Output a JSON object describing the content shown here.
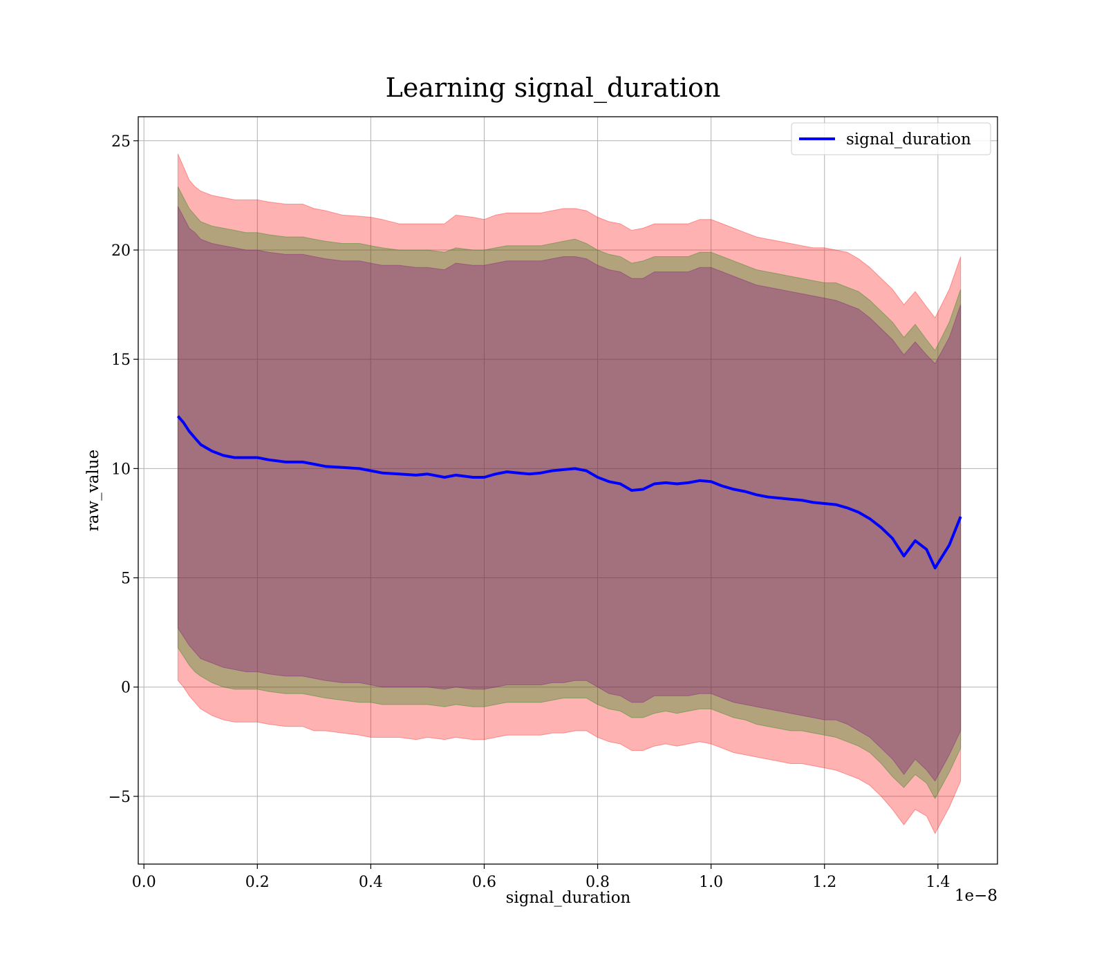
{
  "chart_data": {
    "type": "line",
    "title": "Learning signal_duration",
    "xlabel": "signal_duration",
    "ylabel": "raw_value",
    "x_offset_label": "1e−8",
    "xlim": [
      -0.01,
      1.505
    ],
    "ylim": [
      -8.1,
      26.1
    ],
    "x_ticks": [
      0.0,
      0.2,
      0.4,
      0.6,
      0.8,
      1.0,
      1.2,
      1.4
    ],
    "x_tick_labels": [
      "0.0",
      "0.2",
      "0.4",
      "0.6",
      "0.8",
      "1.0",
      "1.2",
      "1.4"
    ],
    "y_ticks": [
      -5,
      0,
      5,
      10,
      15,
      20,
      25
    ],
    "y_tick_labels": [
      "−5",
      "0",
      "5",
      "10",
      "15",
      "20",
      "25"
    ],
    "grid": true,
    "legend_position": "top-right",
    "series": [
      {
        "name": "signal_duration",
        "color": "#0000ff",
        "x": [
          0.06,
          0.07,
          0.08,
          0.09,
          0.1,
          0.12,
          0.14,
          0.16,
          0.18,
          0.2,
          0.22,
          0.25,
          0.28,
          0.3,
          0.32,
          0.35,
          0.38,
          0.4,
          0.42,
          0.45,
          0.48,
          0.5,
          0.53,
          0.55,
          0.58,
          0.6,
          0.62,
          0.64,
          0.66,
          0.68,
          0.7,
          0.72,
          0.74,
          0.76,
          0.78,
          0.8,
          0.82,
          0.84,
          0.86,
          0.88,
          0.9,
          0.92,
          0.94,
          0.96,
          0.98,
          1.0,
          1.02,
          1.04,
          1.06,
          1.08,
          1.1,
          1.12,
          1.14,
          1.16,
          1.18,
          1.2,
          1.22,
          1.24,
          1.26,
          1.28,
          1.3,
          1.32,
          1.34,
          1.36,
          1.38,
          1.395,
          1.42,
          1.44
        ],
        "y": [
          12.4,
          12.1,
          11.7,
          11.4,
          11.1,
          10.8,
          10.6,
          10.5,
          10.5,
          10.5,
          10.4,
          10.3,
          10.3,
          10.2,
          10.1,
          10.05,
          10.0,
          9.9,
          9.8,
          9.75,
          9.7,
          9.75,
          9.6,
          9.7,
          9.6,
          9.6,
          9.75,
          9.85,
          9.8,
          9.75,
          9.8,
          9.9,
          9.95,
          10.0,
          9.9,
          9.6,
          9.4,
          9.3,
          9.0,
          9.05,
          9.3,
          9.35,
          9.3,
          9.35,
          9.45,
          9.4,
          9.2,
          9.05,
          8.95,
          8.8,
          8.7,
          8.65,
          8.6,
          8.55,
          8.45,
          8.4,
          8.35,
          8.2,
          8.0,
          7.7,
          7.3,
          6.8,
          6.0,
          6.7,
          6.3,
          5.45,
          6.5,
          7.8
        ]
      }
    ],
    "bands": [
      {
        "color": "#ff0000",
        "opacity": 0.3,
        "upper": [
          24.4,
          23.8,
          23.2,
          22.9,
          22.7,
          22.5,
          22.4,
          22.3,
          22.3,
          22.3,
          22.2,
          22.1,
          22.1,
          21.9,
          21.8,
          21.6,
          21.55,
          21.5,
          21.4,
          21.2,
          21.2,
          21.2,
          21.2,
          21.6,
          21.5,
          21.4,
          21.6,
          21.7,
          21.7,
          21.7,
          21.7,
          21.8,
          21.9,
          21.9,
          21.8,
          21.5,
          21.3,
          21.2,
          20.9,
          21.0,
          21.2,
          21.2,
          21.2,
          21.2,
          21.4,
          21.4,
          21.2,
          21.0,
          20.8,
          20.6,
          20.5,
          20.4,
          20.3,
          20.2,
          20.1,
          20.1,
          20.0,
          19.9,
          19.6,
          19.2,
          18.7,
          18.2,
          17.5,
          18.1,
          17.4,
          16.9,
          18.2,
          19.7
        ],
        "lower": [
          0.3,
          0.0,
          -0.4,
          -0.7,
          -1.0,
          -1.3,
          -1.5,
          -1.6,
          -1.6,
          -1.6,
          -1.7,
          -1.8,
          -1.8,
          -2.0,
          -2.0,
          -2.1,
          -2.2,
          -2.3,
          -2.3,
          -2.3,
          -2.4,
          -2.3,
          -2.4,
          -2.3,
          -2.4,
          -2.4,
          -2.3,
          -2.2,
          -2.2,
          -2.2,
          -2.2,
          -2.1,
          -2.1,
          -2.0,
          -2.0,
          -2.3,
          -2.5,
          -2.6,
          -2.9,
          -2.9,
          -2.7,
          -2.6,
          -2.7,
          -2.6,
          -2.5,
          -2.6,
          -2.8,
          -3.0,
          -3.1,
          -3.2,
          -3.3,
          -3.4,
          -3.5,
          -3.5,
          -3.6,
          -3.7,
          -3.8,
          -4.0,
          -4.2,
          -4.5,
          -5.0,
          -5.6,
          -6.3,
          -5.6,
          -5.9,
          -6.7,
          -5.5,
          -4.3
        ]
      },
      {
        "color": "#008000",
        "opacity": 0.3,
        "upper": [
          22.9,
          22.4,
          21.9,
          21.6,
          21.3,
          21.1,
          21.0,
          20.9,
          20.8,
          20.8,
          20.7,
          20.6,
          20.6,
          20.5,
          20.4,
          20.3,
          20.3,
          20.2,
          20.1,
          20.0,
          20.0,
          20.0,
          19.9,
          20.1,
          20.0,
          20.0,
          20.1,
          20.2,
          20.2,
          20.2,
          20.2,
          20.3,
          20.4,
          20.5,
          20.3,
          20.0,
          19.8,
          19.7,
          19.4,
          19.5,
          19.7,
          19.7,
          19.7,
          19.7,
          19.9,
          19.9,
          19.7,
          19.5,
          19.3,
          19.1,
          19.0,
          18.9,
          18.8,
          18.7,
          18.6,
          18.5,
          18.5,
          18.3,
          18.1,
          17.7,
          17.2,
          16.7,
          16.0,
          16.6,
          15.9,
          15.4,
          16.7,
          18.2
        ],
        "lower": [
          1.8,
          1.4,
          1.0,
          0.7,
          0.5,
          0.2,
          0.0,
          -0.1,
          -0.1,
          -0.1,
          -0.2,
          -0.3,
          -0.3,
          -0.4,
          -0.5,
          -0.6,
          -0.7,
          -0.7,
          -0.8,
          -0.8,
          -0.8,
          -0.8,
          -0.9,
          -0.8,
          -0.9,
          -0.9,
          -0.8,
          -0.7,
          -0.7,
          -0.7,
          -0.7,
          -0.6,
          -0.5,
          -0.5,
          -0.5,
          -0.8,
          -1.0,
          -1.1,
          -1.4,
          -1.4,
          -1.2,
          -1.1,
          -1.2,
          -1.1,
          -1.0,
          -1.0,
          -1.2,
          -1.4,
          -1.5,
          -1.7,
          -1.8,
          -1.9,
          -2.0,
          -2.0,
          -2.1,
          -2.2,
          -2.3,
          -2.5,
          -2.7,
          -3.0,
          -3.5,
          -4.1,
          -4.6,
          -4.0,
          -4.4,
          -5.1,
          -3.9,
          -2.8
        ]
      },
      {
        "color": "#800080",
        "opacity": 0.3,
        "upper": [
          22.0,
          21.5,
          21.0,
          20.8,
          20.5,
          20.3,
          20.2,
          20.1,
          20.0,
          20.0,
          19.9,
          19.8,
          19.8,
          19.7,
          19.6,
          19.5,
          19.5,
          19.4,
          19.3,
          19.3,
          19.2,
          19.2,
          19.1,
          19.4,
          19.3,
          19.3,
          19.4,
          19.5,
          19.5,
          19.5,
          19.5,
          19.6,
          19.7,
          19.7,
          19.6,
          19.3,
          19.1,
          19.0,
          18.7,
          18.7,
          19.0,
          19.0,
          19.0,
          19.0,
          19.2,
          19.2,
          19.0,
          18.8,
          18.6,
          18.4,
          18.3,
          18.2,
          18.1,
          18.0,
          17.9,
          17.8,
          17.7,
          17.5,
          17.3,
          16.9,
          16.4,
          15.9,
          15.2,
          15.8,
          15.2,
          14.8,
          16.0,
          17.5
        ],
        "lower": [
          2.7,
          2.3,
          1.9,
          1.6,
          1.3,
          1.1,
          0.9,
          0.8,
          0.7,
          0.7,
          0.6,
          0.5,
          0.5,
          0.4,
          0.3,
          0.2,
          0.2,
          0.1,
          0.0,
          0.0,
          0.0,
          0.0,
          -0.1,
          0.0,
          -0.1,
          -0.1,
          0.0,
          0.1,
          0.1,
          0.1,
          0.1,
          0.2,
          0.2,
          0.3,
          0.3,
          0.0,
          -0.3,
          -0.4,
          -0.7,
          -0.7,
          -0.4,
          -0.4,
          -0.4,
          -0.4,
          -0.3,
          -0.3,
          -0.5,
          -0.7,
          -0.8,
          -0.9,
          -1.0,
          -1.1,
          -1.2,
          -1.3,
          -1.4,
          -1.5,
          -1.5,
          -1.7,
          -2.0,
          -2.3,
          -2.8,
          -3.3,
          -4.0,
          -3.3,
          -3.8,
          -4.3,
          -3.1,
          -2.0
        ]
      }
    ]
  }
}
